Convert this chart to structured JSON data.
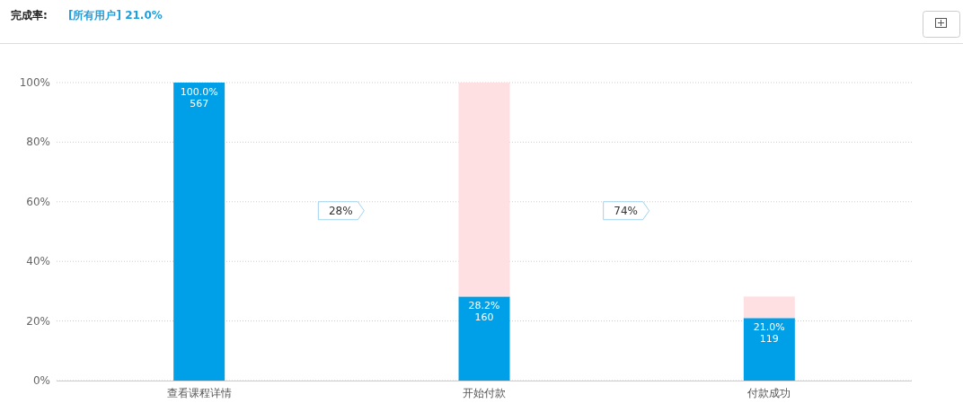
{
  "chart_data": {
    "type": "bar",
    "title": "完成率:",
    "subtitle": "[所有用户] 21.0%",
    "stacked": true,
    "grid": "y",
    "categories": [
      "查看课程详情",
      "开始付款",
      "付款成功"
    ],
    "series": [
      {
        "color": "#00a0e9",
        "values": [
          100,
          28.2,
          21.0
        ],
        "value_labels": [
          "100.0%",
          "28.2%",
          "21.0%"
        ]
      },
      {
        "color": "#ffe0e2",
        "values": [
          0,
          71.8,
          7.2
        ]
      }
    ],
    "ylim": [
      0,
      100
    ],
    "yticks": [
      {
        "value": 0,
        "label": "0%"
      },
      {
        "value": 20,
        "label": "20%"
      },
      {
        "value": 40,
        "label": "40%"
      },
      {
        "value": 60,
        "label": "60%"
      },
      {
        "value": 80,
        "label": "80%"
      },
      {
        "value": 100,
        "label": "100%"
      }
    ],
    "annotations": [
      "28%",
      "74%",
      {
        "text": "567",
        "x": "查看课程详情",
        "y": 100
      },
      {
        "text": "160",
        "x": "开始付款",
        "y": 28.2
      },
      {
        "text": "119",
        "x": "付款成功",
        "y": 21.0
      }
    ]
  }
}
